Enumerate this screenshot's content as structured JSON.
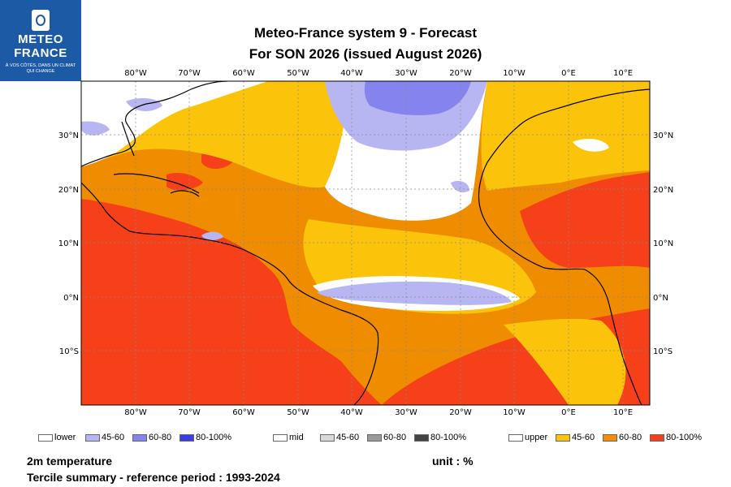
{
  "logo": {
    "line1": "METEO",
    "line2": "FRANCE",
    "tagline": "À VOS CÔTÉS, DANS UN CLIMAT QUI CHANGE"
  },
  "title": {
    "line1": "Meteo-France system 9  -  Forecast",
    "line2": "For SON 2026      (issued August 2026)"
  },
  "map": {
    "lon_labels": [
      "80°W",
      "70°W",
      "60°W",
      "50°W",
      "40°W",
      "30°W",
      "20°W",
      "10°W",
      "0°E",
      "10°E"
    ],
    "lat_labels": [
      "30°N",
      "20°N",
      "10°N",
      "0°N",
      "10°S"
    ],
    "colors": {
      "ocean_default": "#f08c00",
      "upper_80_100": "#f5401a",
      "upper_60_80": "#f58c0a",
      "upper_45_60": "#fbc40a",
      "mid": "#ffffff",
      "lower_45_60": "#b8b6f2",
      "lower_60_80": "#8584ee",
      "coast": "#000000",
      "grid": "#888888"
    }
  },
  "legend": {
    "lower": {
      "label": "lower",
      "items": [
        {
          "label": "45-60",
          "color": "#b8b6f2"
        },
        {
          "label": "60-80",
          "color": "#8584ee"
        },
        {
          "label": "80-100%",
          "color": "#3c3ce0"
        }
      ]
    },
    "mid": {
      "label": "mid",
      "items": [
        {
          "label": "45-60",
          "color": "#d8d8d8"
        },
        {
          "label": "60-80",
          "color": "#999999"
        },
        {
          "label": "80-100%",
          "color": "#444444"
        }
      ]
    },
    "upper": {
      "label": "upper",
      "items": [
        {
          "label": "45-60",
          "color": "#fbc40a"
        },
        {
          "label": "60-80",
          "color": "#f58c0a"
        },
        {
          "label": "80-100%",
          "color": "#f5401a"
        }
      ]
    }
  },
  "footer": {
    "variable": "2m temperature",
    "unit": "unit : %",
    "summary": "Tercile summary - reference period : 1993-2024"
  }
}
